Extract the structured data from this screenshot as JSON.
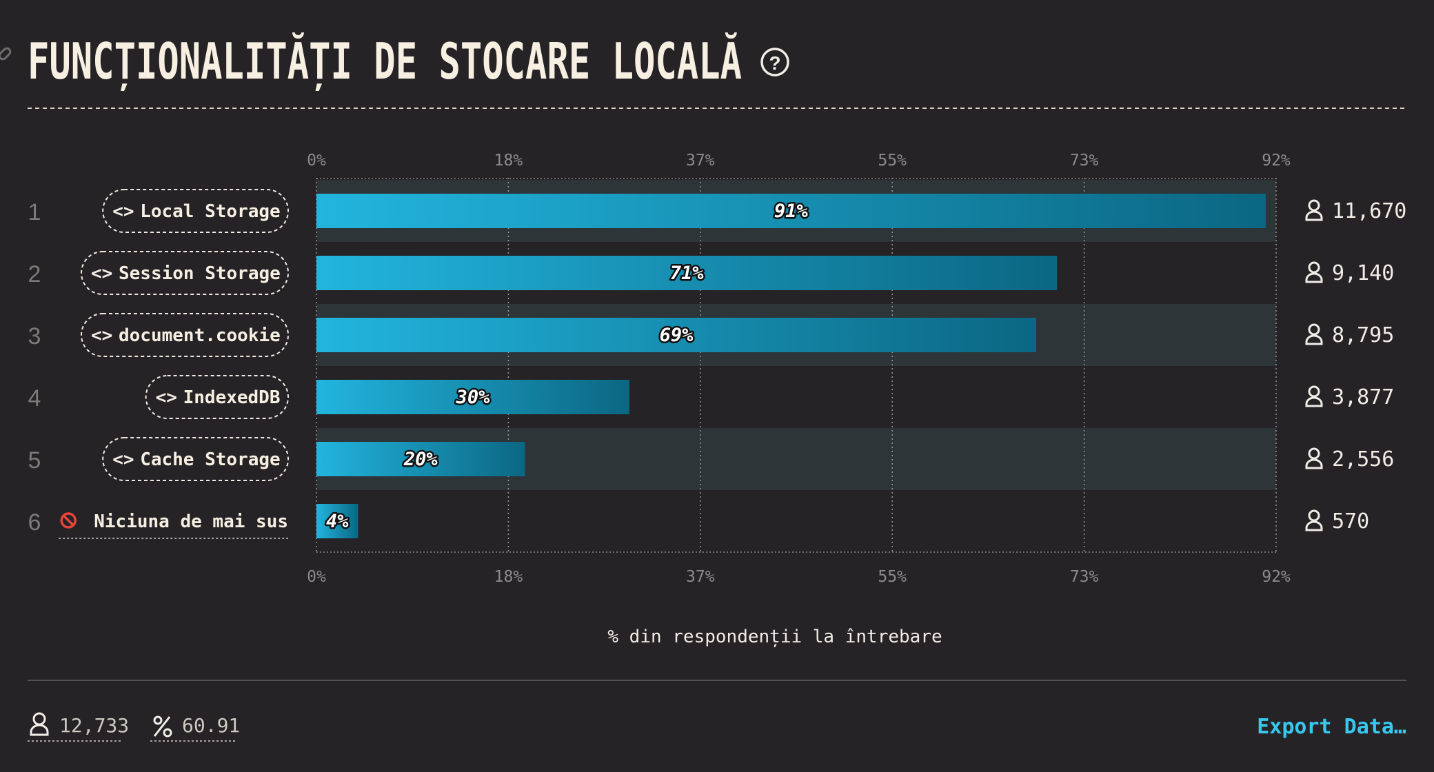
{
  "title": "FUNCȚIONALITĂȚI DE STOCARE LOCALĂ",
  "chart_data": {
    "type": "bar",
    "orientation": "horizontal",
    "xlabel": "% din respondenții la întrebare",
    "xlim": [
      0,
      92
    ],
    "tick_labels": [
      "0%",
      "18%",
      "37%",
      "55%",
      "73%",
      "92%"
    ],
    "grid": true,
    "categories": [
      "Local Storage",
      "Session Storage",
      "document.cookie",
      "IndexedDB",
      "Cache Storage",
      "Niciuna de mai sus"
    ],
    "ranks": [
      "1",
      "2",
      "3",
      "4",
      "5",
      "6"
    ],
    "values": [
      91,
      71,
      69,
      30,
      20,
      4
    ],
    "value_labels": [
      "91%",
      "71%",
      "69%",
      "30%",
      "20%",
      "4%"
    ],
    "counts": [
      "11,670",
      "9,140",
      "8,795",
      "3,877",
      "2,556",
      "570"
    ],
    "label_kind": [
      "code",
      "code",
      "code",
      "code",
      "code",
      "none"
    ]
  },
  "footer": {
    "respondents": "12,733",
    "percent": "60.91",
    "export_label": "Export Data…"
  },
  "colors": {
    "background": "#252325",
    "bar_start": "#22b5de",
    "bar_end": "#0b6783",
    "row_shade": "#2d3538",
    "text": "#f1ece6",
    "muted": "#8c8b8b",
    "accent": "#35c9ef",
    "none_icon": "#e8453c"
  },
  "icons": {
    "title_help": "question-circle-icon",
    "code": "code-brackets-icon",
    "none": "no-entry-icon",
    "user": "user-icon",
    "percent": "percent-icon"
  }
}
